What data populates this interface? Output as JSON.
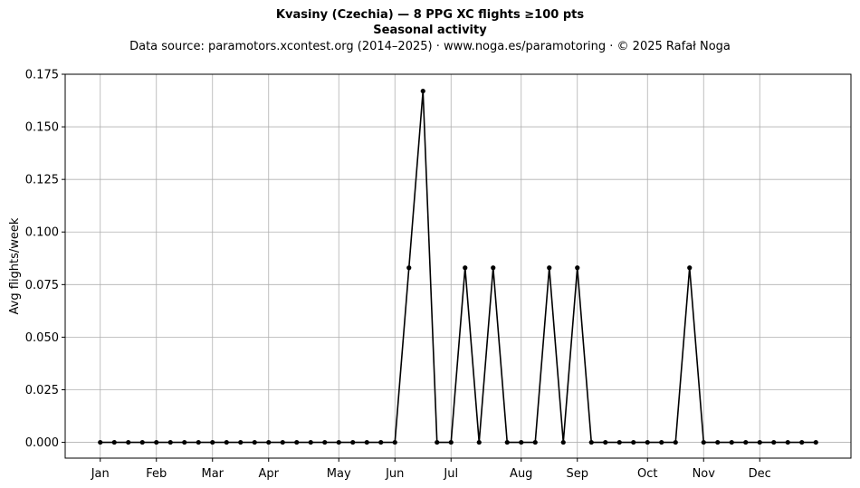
{
  "chart_data": {
    "type": "line",
    "title": "Kvasiny (Czechia)  —  8 PPG XC flights ≥100 pts",
    "title2": "Seasonal activity",
    "subtitle": "Data source: paramotors.xcontest.org (2014–2025)  ·  www.noga.es/paramotoring  ·  © 2025 Rafał Noga",
    "xlabel": "",
    "ylabel": "Avg flights/week",
    "ylim": [
      -0.0075,
      0.175
    ],
    "y_ticks": [
      "0.000",
      "0.025",
      "0.050",
      "0.075",
      "0.100",
      "0.125",
      "0.150",
      "0.175"
    ],
    "y_tick_values": [
      0,
      0.025,
      0.05,
      0.075,
      0.1,
      0.125,
      0.15,
      0.175
    ],
    "xlim": [
      -2.5,
      53.5
    ],
    "x_ticks": [
      "Jan",
      "Feb",
      "Mar",
      "Apr",
      "May",
      "Jun",
      "Jul",
      "Aug",
      "Sep",
      "Oct",
      "Nov",
      "Dec"
    ],
    "x_tick_weeks": [
      0,
      4,
      8,
      12,
      17,
      21,
      25,
      30,
      34,
      39,
      43,
      47
    ],
    "grid": true,
    "line_color": "#000000",
    "series": [
      {
        "x": [
          0,
          1,
          2,
          3,
          4,
          5,
          6,
          7,
          8,
          9,
          10,
          11,
          12,
          13,
          14,
          15,
          16,
          17,
          18,
          19,
          20,
          21,
          22,
          23,
          24,
          25,
          26,
          27,
          28,
          29,
          30,
          31,
          32,
          33,
          34,
          35,
          36,
          37,
          38,
          39,
          40,
          41,
          42,
          43,
          44,
          45,
          46,
          47,
          48,
          49,
          50,
          51
        ],
        "values": [
          0,
          0,
          0,
          0,
          0,
          0,
          0,
          0,
          0,
          0,
          0,
          0,
          0,
          0,
          0,
          0,
          0,
          0,
          0,
          0,
          0,
          0,
          0.083,
          0.167,
          0,
          0,
          0.083,
          0,
          0.083,
          0,
          0,
          0,
          0.083,
          0,
          0.083,
          0,
          0,
          0,
          0,
          0,
          0,
          0,
          0.083,
          0,
          0,
          0,
          0,
          0,
          0,
          0,
          0,
          0
        ]
      }
    ]
  }
}
